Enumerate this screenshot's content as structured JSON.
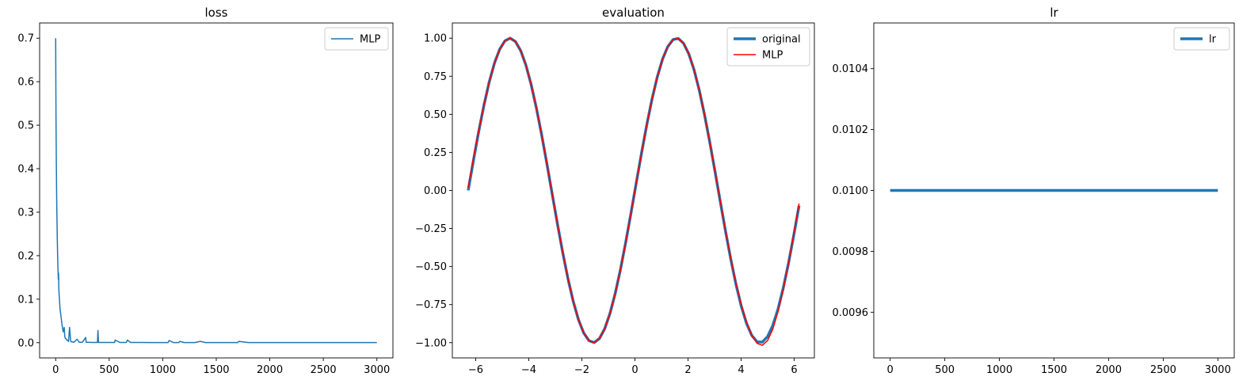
{
  "chart_data": [
    {
      "type": "line",
      "title": "loss",
      "xlabel": "",
      "ylabel": "",
      "xlim": [
        -150,
        3150
      ],
      "ylim": [
        -0.035,
        0.735
      ],
      "xticks": [
        0,
        500,
        1000,
        1500,
        2000,
        2500,
        3000
      ],
      "xtick_labels": [
        "0",
        "500",
        "1000",
        "1500",
        "2000",
        "2500",
        "3000"
      ],
      "yticks": [
        0.0,
        0.1,
        0.2,
        0.3,
        0.4,
        0.5,
        0.6,
        0.7
      ],
      "ytick_labels": [
        "0.0",
        "0.1",
        "0.2",
        "0.3",
        "0.4",
        "0.5",
        "0.6",
        "0.7"
      ],
      "grid": false,
      "legend": "top-right",
      "series": [
        {
          "name": "MLP",
          "color": "#1f77b4",
          "x": [
            0,
            3,
            6,
            10,
            15,
            20,
            25,
            27,
            30,
            35,
            40,
            50,
            55,
            60,
            70,
            80,
            85,
            90,
            100,
            110,
            120,
            130,
            140,
            145,
            150,
            170,
            200,
            220,
            250,
            280,
            285,
            300,
            350,
            390,
            395,
            400,
            500,
            550,
            555,
            600,
            660,
            670,
            700,
            800,
            900,
            1050,
            1060,
            1100,
            1150,
            1160,
            1200,
            1300,
            1350,
            1400,
            1500,
            1600,
            1700,
            1710,
            1800,
            2000,
            2200,
            2500,
            2800,
            3000
          ],
          "y": [
            0.7,
            0.52,
            0.42,
            0.32,
            0.24,
            0.18,
            0.145,
            0.16,
            0.12,
            0.1,
            0.08,
            0.06,
            0.05,
            0.04,
            0.025,
            0.035,
            0.015,
            0.01,
            0.008,
            0.005,
            0.003,
            0.035,
            0.004,
            0.002,
            0.002,
            0.001,
            0.008,
            0.001,
            0.001,
            0.012,
            0.001,
            0.001,
            0.0005,
            0.0005,
            0.028,
            0.0005,
            0.0005,
            0.0005,
            0.006,
            0.0005,
            0.0005,
            0.006,
            0.0005,
            0.0005,
            0.0003,
            0.0003,
            0.005,
            0.0003,
            0.0003,
            0.003,
            0.0003,
            0.0003,
            0.003,
            0.0003,
            0.0003,
            0.0002,
            0.0002,
            0.003,
            0.0002,
            0.0002,
            0.0002,
            0.0002,
            0.0002,
            0.0002
          ]
        }
      ]
    },
    {
      "type": "line",
      "title": "evaluation",
      "xlabel": "",
      "ylabel": "",
      "xlim": [
        -6.88,
        6.76
      ],
      "ylim": [
        -1.1,
        1.1
      ],
      "xticks": [
        -6,
        -4,
        -2,
        0,
        2,
        4,
        6
      ],
      "xtick_labels": [
        "−6",
        "−4",
        "−2",
        "0",
        "2",
        "4",
        "6"
      ],
      "yticks": [
        -1.0,
        -0.75,
        -0.5,
        -0.25,
        0.0,
        0.25,
        0.5,
        0.75,
        1.0
      ],
      "ytick_labels": [
        "−1.00",
        "−0.75",
        "−0.50",
        "−0.25",
        "0.00",
        "0.25",
        "0.50",
        "0.75",
        "1.00"
      ],
      "grid": false,
      "legend": "top-right",
      "series": [
        {
          "name": "original",
          "color": "#1f77b4",
          "function": "sin",
          "x_range": [
            -6.283,
            6.183
          ]
        },
        {
          "name": "MLP",
          "color": "#ff0000",
          "function": "sin-approx",
          "x_range": [
            -6.283,
            6.183
          ]
        }
      ]
    },
    {
      "type": "line",
      "title": "lr",
      "xlabel": "",
      "ylabel": "",
      "xlim": [
        -150,
        3150
      ],
      "ylim": [
        0.00945,
        0.01055
      ],
      "xticks": [
        0,
        500,
        1000,
        1500,
        2000,
        2500,
        3000
      ],
      "xtick_labels": [
        "0",
        "500",
        "1000",
        "1500",
        "2000",
        "2500",
        "3000"
      ],
      "yticks": [
        0.0096,
        0.0098,
        0.01,
        0.0102,
        0.0104
      ],
      "ytick_labels": [
        "0.0096",
        "0.0098",
        "0.0100",
        "0.0102",
        "0.0104"
      ],
      "grid": false,
      "legend": "top-right",
      "series": [
        {
          "name": "lr",
          "color": "#1f77b4",
          "x": [
            0,
            3000
          ],
          "y": [
            0.01,
            0.01
          ]
        }
      ]
    }
  ]
}
